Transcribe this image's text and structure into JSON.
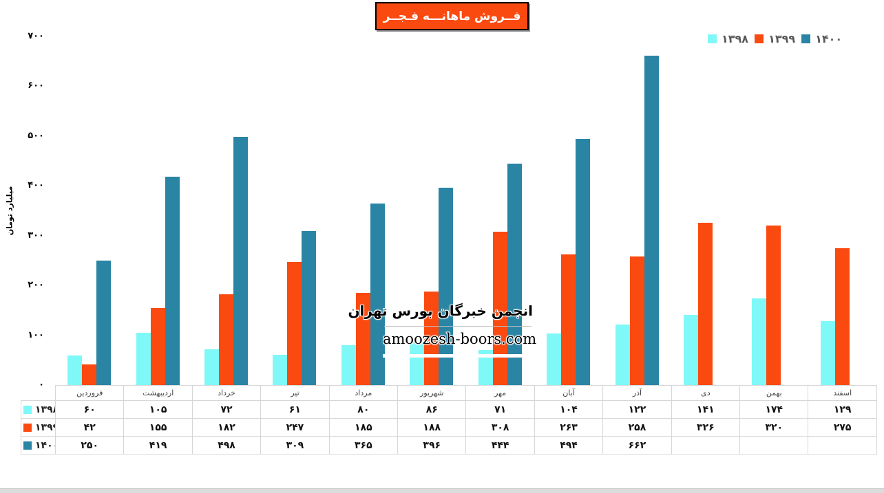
{
  "title": {
    "text": "فــروش ماهانـــه فـجــر",
    "bg_color": "#FB4A10",
    "text_color": "#FFFFFF"
  },
  "legend": {
    "items": [
      {
        "label": "۱۳۹۸",
        "color": "#7FF8F8"
      },
      {
        "label": "۱۳۹۹",
        "color": "#FB4A10"
      },
      {
        "label": "۱۴۰۰",
        "color": "#2A85A5"
      }
    ]
  },
  "watermark": {
    "line1": "انجمن خبرگان بورس تهران",
    "line2": "amoozesh-boors.com"
  },
  "chart_data": {
    "type": "bar",
    "title": "فــروش ماهانـــه فـجــر",
    "xlabel": "",
    "ylabel": "میلیارد تومان",
    "ylim": [
      0,
      700
    ],
    "y_ticks": [
      700,
      600,
      500,
      400,
      300,
      200,
      100,
      0
    ],
    "grid": false,
    "legend_position": "top-right",
    "number_locale": "fa",
    "categories": [
      "فروردین",
      "اردیبهشت",
      "خرداد",
      "تیر",
      "مرداد",
      "شهریور",
      "مهر",
      "آبان",
      "آذر",
      "دی",
      "بهمن",
      "اسفند"
    ],
    "series": [
      {
        "name": "۱۳۹۸",
        "color": "#7FF8F8",
        "values": [
          60,
          105,
          72,
          61,
          80,
          86,
          71,
          104,
          122,
          141,
          174,
          129
        ]
      },
      {
        "name": "۱۳۹۹",
        "color": "#FB4A10",
        "values": [
          42,
          155,
          182,
          247,
          185,
          188,
          308,
          263,
          258,
          326,
          320,
          275
        ]
      },
      {
        "name": "۱۴۰۰",
        "color": "#2A85A5",
        "values": [
          250,
          419,
          498,
          309,
          365,
          396,
          444,
          494,
          662,
          null,
          null,
          null
        ]
      }
    ]
  }
}
